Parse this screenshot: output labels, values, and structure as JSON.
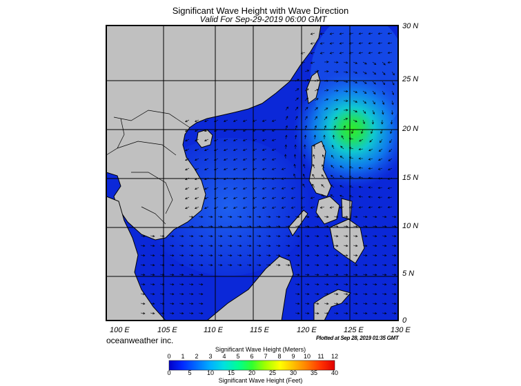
{
  "title": "Significant Wave Height with Wave Direction",
  "subtitle": "Valid For Sep-29-2019 06:00 GMT",
  "map": {
    "lat_labels": [
      "30 N",
      "25 N",
      "20 N",
      "15 N",
      "10 N",
      "5 N",
      "0"
    ],
    "lon_labels": [
      "100 E",
      "105 E",
      "110 E",
      "115 E",
      "120 E",
      "125 E",
      "130 E"
    ],
    "colors": {
      "land": "#c0c0c0",
      "sea_low": "#0b28d8",
      "sea_mid": "#1a5cf0",
      "peak": "#22ee22",
      "grid": "#000000"
    },
    "storm_center": {
      "lon_e": 125.3,
      "lat_n": 20.0
    }
  },
  "credit": "oceanweather inc.",
  "plotted": "Plotted at Sep 28, 2019 01:35 GMT",
  "colorbar": {
    "title_top": "Significant Wave Height (Meters)",
    "title_bottom": "Significant Wave Height (Feet)",
    "meter_ticks": [
      "0",
      "1",
      "2",
      "3",
      "4",
      "5",
      "6",
      "7",
      "8",
      "9",
      "10",
      "11",
      "12"
    ],
    "feet_ticks": [
      "0",
      "5",
      "10",
      "15",
      "20",
      "25",
      "30",
      "35",
      "40"
    ],
    "colors": [
      "#0000c8",
      "#0028ff",
      "#0070ff",
      "#00b0ff",
      "#00e0e0",
      "#00ff90",
      "#30ff30",
      "#a0ff00",
      "#ffff00",
      "#ffc000",
      "#ff8000",
      "#ff3000",
      "#e00000"
    ]
  }
}
